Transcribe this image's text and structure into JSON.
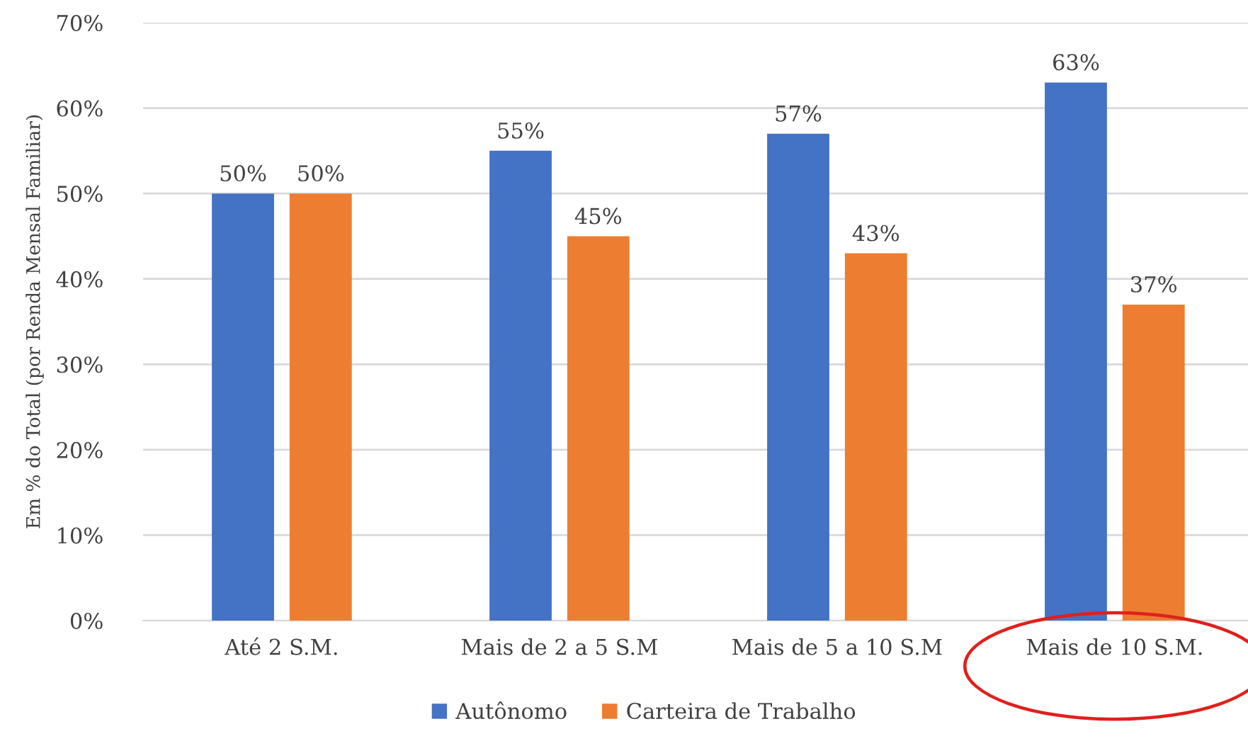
{
  "chart_data": {
    "type": "bar",
    "ylabel": "Em % do Total (por Renda Mensal Familiar)",
    "categories": [
      "Até 2 S.M.",
      "Mais de 2 a 5 S.M",
      "Mais de 5 a 10 S.M",
      "Mais de 10 S.M."
    ],
    "series": [
      {
        "name": "Autônomo",
        "color": "#4472c4",
        "values": [
          50,
          55,
          57,
          63
        ],
        "value_labels": [
          "50%",
          "55%",
          "57%",
          "63%"
        ]
      },
      {
        "name": "Carteira de Trabalho",
        "color": "#ed7d31",
        "values": [
          50,
          45,
          43,
          37
        ],
        "value_labels": [
          "50%",
          "45%",
          "43%",
          "37%"
        ]
      }
    ],
    "ylim": [
      0,
      70
    ],
    "yticks": [
      {
        "value": 0,
        "label": "0%"
      },
      {
        "value": 10,
        "label": "10%"
      },
      {
        "value": 20,
        "label": "20%"
      },
      {
        "value": 30,
        "label": "30%"
      },
      {
        "value": 40,
        "label": "40%"
      },
      {
        "value": 50,
        "label": "50%"
      },
      {
        "value": 60,
        "label": "60%"
      },
      {
        "value": 70,
        "label": "70%"
      }
    ],
    "grid": "y",
    "legend": "bottom"
  }
}
